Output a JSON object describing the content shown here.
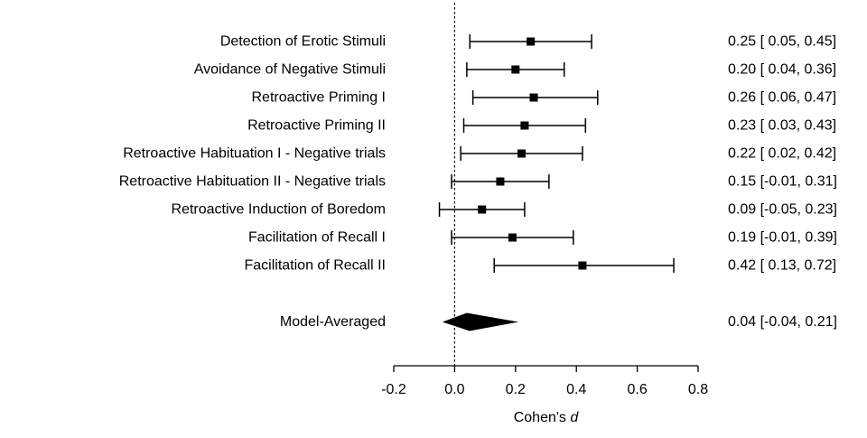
{
  "figure": {
    "background": "#ffffff",
    "ink_color": "#000000"
  },
  "chart_data": {
    "type": "scatter",
    "variant": "forest-plot",
    "title": "",
    "xlabel_prefix": "Cohen's ",
    "xlabel_italic": "d",
    "xlim": [
      -0.2,
      0.8
    ],
    "xticks": [
      -0.2,
      0.0,
      0.2,
      0.4,
      0.6,
      0.8
    ],
    "xtick_labels": [
      "-0.2",
      "0.0",
      "0.2",
      "0.4",
      "0.6",
      "0.8"
    ],
    "grid": false,
    "legend": false,
    "zero_reference_line": {
      "x": 0.0,
      "style": "dotted"
    },
    "studies": [
      {
        "label": "Detection of Erotic Stimuli",
        "mean": 0.25,
        "ci": [
          0.05,
          0.45
        ],
        "value_text": "0.25 [ 0.05, 0.45]"
      },
      {
        "label": "Avoidance of Negative Stimuli",
        "mean": 0.2,
        "ci": [
          0.04,
          0.36
        ],
        "value_text": "0.20 [ 0.04, 0.36]"
      },
      {
        "label": "Retroactive Priming I",
        "mean": 0.26,
        "ci": [
          0.06,
          0.47
        ],
        "value_text": "0.26 [ 0.06, 0.47]"
      },
      {
        "label": "Retroactive Priming II",
        "mean": 0.23,
        "ci": [
          0.03,
          0.43
        ],
        "value_text": "0.23 [ 0.03, 0.43]"
      },
      {
        "label": "Retroactive Habituation I - Negative trials",
        "mean": 0.22,
        "ci": [
          0.02,
          0.42
        ],
        "value_text": "0.22 [ 0.02, 0.42]"
      },
      {
        "label": "Retroactive Habituation II - Negative trials",
        "mean": 0.15,
        "ci": [
          -0.01,
          0.31
        ],
        "value_text": "0.15 [-0.01, 0.31]"
      },
      {
        "label": "Retroactive Induction of Boredom",
        "mean": 0.09,
        "ci": [
          -0.05,
          0.23
        ],
        "value_text": "0.09 [-0.05, 0.23]"
      },
      {
        "label": "Facilitation of Recall I",
        "mean": 0.19,
        "ci": [
          -0.01,
          0.39
        ],
        "value_text": "0.19 [-0.01, 0.39]"
      },
      {
        "label": "Facilitation of Recall II",
        "mean": 0.42,
        "ci": [
          0.13,
          0.72
        ],
        "value_text": "0.42 [ 0.13, 0.72]"
      }
    ],
    "summary": {
      "label": "Model-Averaged",
      "mean": 0.04,
      "ci": [
        -0.04,
        0.21
      ],
      "value_text": "0.04 [-0.04, 0.21]",
      "marker": "diamond"
    }
  }
}
